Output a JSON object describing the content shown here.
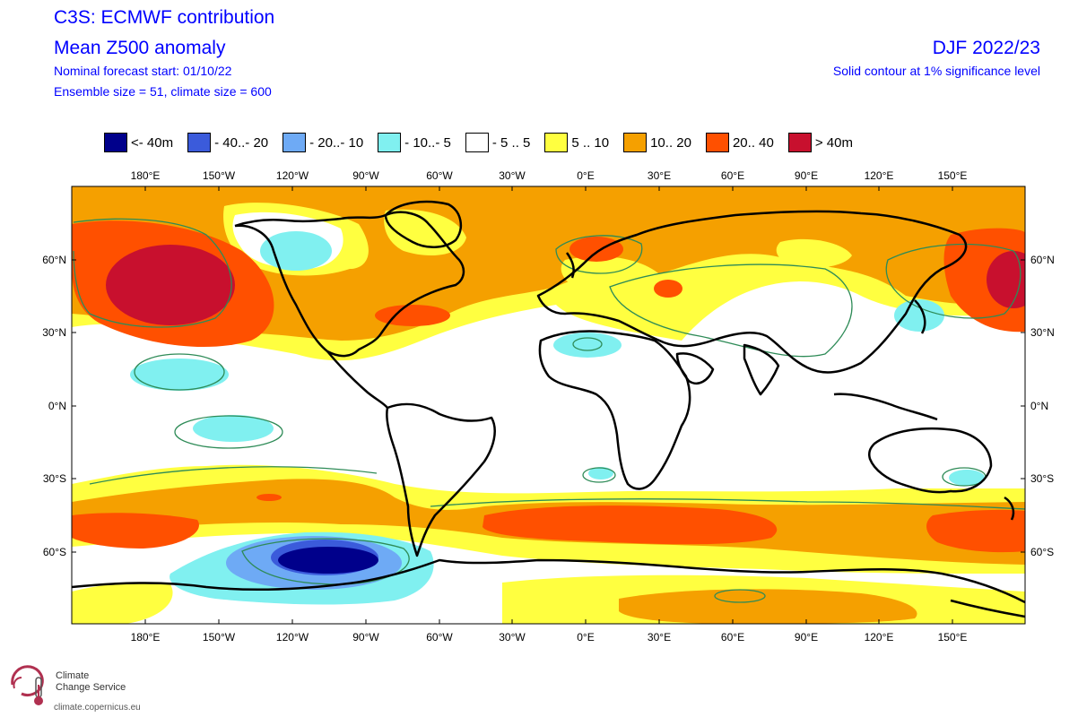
{
  "header": {
    "title_line1": "C3S: ECMWF contribution",
    "title_line2": "Mean Z500 anomaly",
    "forecast_start": "Nominal forecast start: 01/10/22",
    "ensemble": "Ensemble size = 51, climate size = 600",
    "season": "DJF 2022/23",
    "significance": "Solid contour at 1% significance level"
  },
  "legend": [
    {
      "label": "<- 40m",
      "color": "#00008b"
    },
    {
      "label": "- 40..- 20",
      "color": "#3b5bdb"
    },
    {
      "label": "- 20..- 10",
      "color": "#6eaaf5"
    },
    {
      "label": "- 10..- 5",
      "color": "#80f0f0"
    },
    {
      "label": "- 5 .. 5",
      "color": "#ffffff"
    },
    {
      "label": "5 .. 10",
      "color": "#ffff40"
    },
    {
      "label": "10.. 20",
      "color": "#f5a000"
    },
    {
      "label": "20.. 40",
      "color": "#ff5000"
    },
    {
      "label": "> 40m",
      "color": "#c8102e"
    }
  ],
  "axes": {
    "longitude_labels": [
      "180°E",
      "150°W",
      "120°W",
      "90°W",
      "60°W",
      "30°W",
      "0°E",
      "30°E",
      "60°E",
      "90°E",
      "120°E",
      "150°E"
    ],
    "latitude_labels": [
      "60°N",
      "30°N",
      "0°N",
      "30°S",
      "60°S"
    ]
  },
  "logo": {
    "name_line1": "Climate",
    "name_line2": "Change Service",
    "url": "climate.copernicus.eu"
  },
  "colors": {
    "text_blue": "#0000ff",
    "contour_green": "#2e8b57",
    "coast": "#000000"
  }
}
